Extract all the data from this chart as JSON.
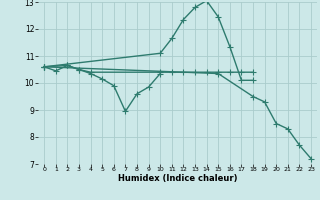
{
  "xlabel": "Humidex (Indice chaleur)",
  "bg_color": "#cce8e8",
  "grid_color": "#aacccc",
  "line_color": "#2e7b6e",
  "line_width": 1.0,
  "marker": "+",
  "marker_size": 4,
  "marker_lw": 0.8,
  "xlim": [
    -0.5,
    23.5
  ],
  "ylim": [
    7,
    13
  ],
  "xticks": [
    0,
    1,
    2,
    3,
    4,
    5,
    6,
    7,
    8,
    9,
    10,
    11,
    12,
    13,
    14,
    15,
    16,
    17,
    18,
    19,
    20,
    21,
    22,
    23
  ],
  "yticks": [
    7,
    8,
    9,
    10,
    11,
    12,
    13
  ],
  "series": [
    {
      "x": [
        0,
        1,
        2,
        3,
        4,
        10,
        11,
        12,
        13,
        14,
        15,
        16,
        17,
        18
      ],
      "y": [
        10.6,
        10.45,
        10.65,
        10.5,
        10.4,
        10.4,
        10.4,
        10.4,
        10.4,
        10.4,
        10.4,
        10.4,
        10.4,
        10.4
      ]
    },
    {
      "x": [
        0,
        2,
        3,
        4,
        5,
        6,
        7,
        8,
        9,
        10
      ],
      "y": [
        10.6,
        10.65,
        10.5,
        10.35,
        10.15,
        9.9,
        8.95,
        9.6,
        9.85,
        10.35
      ]
    },
    {
      "x": [
        0,
        10,
        11,
        12,
        13,
        14,
        15,
        16,
        17,
        18
      ],
      "y": [
        10.6,
        11.1,
        11.65,
        12.35,
        12.8,
        13.05,
        12.45,
        11.35,
        10.1,
        10.1
      ]
    },
    {
      "x": [
        0,
        15,
        18,
        19,
        20,
        21,
        22,
        23
      ],
      "y": [
        10.6,
        10.35,
        9.5,
        9.3,
        8.5,
        8.3,
        7.7,
        7.2
      ]
    }
  ]
}
